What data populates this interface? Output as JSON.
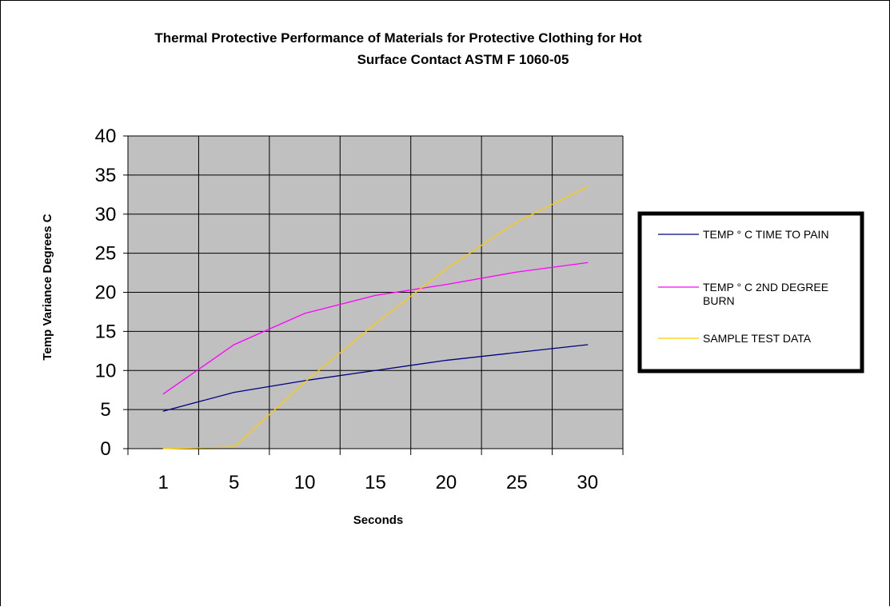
{
  "chart_data": {
    "type": "line",
    "title": "Thermal Protective Performance of Materials for Protective Clothing for Hot Surface Contact ASTM F 1060-05",
    "title_lines": [
      "Thermal Protective Performance of Materials for Protective Clothing for Hot",
      "Surface Contact ASTM F 1060-05"
    ],
    "xlabel": "Seconds",
    "ylabel": "Temp Variance Degrees C",
    "categories": [
      "1",
      "5",
      "10",
      "15",
      "20",
      "25",
      "30"
    ],
    "ylim": [
      0,
      40
    ],
    "yticks": [
      0,
      5,
      10,
      15,
      20,
      25,
      30,
      35,
      40
    ],
    "grid": true,
    "legend_position": "right",
    "plot_background": "#c0c0c0",
    "series": [
      {
        "name": "TEMP ° C TIME TO PAIN",
        "name_lines": [
          "TEMP ° C TIME TO PAIN"
        ],
        "color": "#000080",
        "values": [
          4.8,
          7.2,
          8.7,
          10.0,
          11.3,
          12.3,
          13.3
        ]
      },
      {
        "name": "TEMP ° C  2ND DEGREE BURN",
        "name_lines": [
          "TEMP ° C  2ND DEGREE",
          "BURN"
        ],
        "color": "#ff00ff",
        "values": [
          7.0,
          13.3,
          17.3,
          19.6,
          21.0,
          22.6,
          23.8
        ]
      },
      {
        "name": "SAMPLE TEST DATA",
        "name_lines": [
          "SAMPLE TEST DATA"
        ],
        "color": "#ffcc00",
        "values": [
          0.0,
          0.2,
          8.5,
          16.0,
          23.0,
          29.0,
          33.5
        ]
      }
    ]
  }
}
